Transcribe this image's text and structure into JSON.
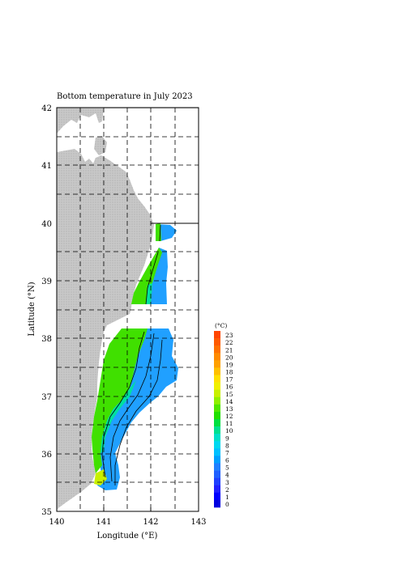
{
  "title": "Bottom temperature in July 2023",
  "axes": {
    "xlabel": "Longitude (°E)",
    "ylabel": "Latitude (°N)",
    "x_ticks": [
      "140",
      "141",
      "142",
      "143"
    ],
    "y_ticks": [
      "42",
      "41",
      "40",
      "39",
      "38",
      "37",
      "36",
      "35"
    ]
  },
  "colorbar": {
    "unit": "(°C)",
    "levels": [
      "23",
      "22",
      "21",
      "20",
      "19",
      "18",
      "17",
      "16",
      "15",
      "14",
      "13",
      "12",
      "11",
      "10",
      "9",
      "8",
      "7",
      "6",
      "5",
      "4",
      "3",
      "2",
      "1",
      "0"
    ],
    "colors": [
      "#ff4500",
      "#ff5a00",
      "#ff7000",
      "#ff8a00",
      "#ffa000",
      "#ffc000",
      "#ffe000",
      "#f0f000",
      "#c8f000",
      "#90f000",
      "#50e800",
      "#20e000",
      "#00e040",
      "#00e090",
      "#00e0c8",
      "#00d8f0",
      "#00c0ff",
      "#00a0ff",
      "#2080ff",
      "#2060ff",
      "#2040ff",
      "#2020ff",
      "#0000ff",
      "#0000e0"
    ]
  },
  "colors": {
    "land": "#c8c8c8",
    "warm_shelf": "#40e000",
    "mid_shelf": "#00e0a0",
    "cool_slope": "#20a0ff"
  }
}
